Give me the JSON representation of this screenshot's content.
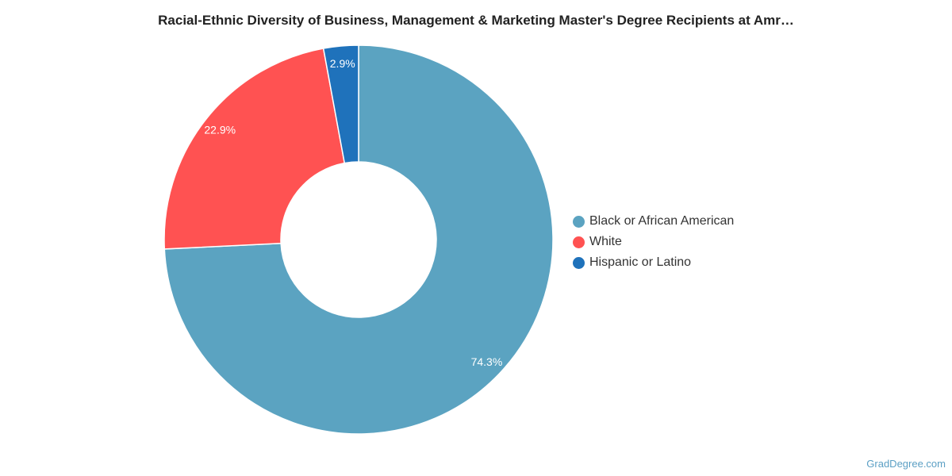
{
  "chart_data": {
    "type": "pie",
    "title": "Racial-Ethnic Diversity of Business, Management & Marketing Master's Degree Recipients at Amr…",
    "legend_position": "right",
    "donut": true,
    "series": [
      {
        "name": "Black or African American",
        "value": 74.3,
        "label": "74.3%",
        "color": "#5ba3c1"
      },
      {
        "name": "White",
        "value": 22.9,
        "label": "22.9%",
        "color": "#ff5252"
      },
      {
        "name": "Hispanic or Latino",
        "value": 2.9,
        "label": "2.9%",
        "color": "#1f72bb"
      }
    ]
  },
  "footer": {
    "brand": "GradDegree.com"
  }
}
